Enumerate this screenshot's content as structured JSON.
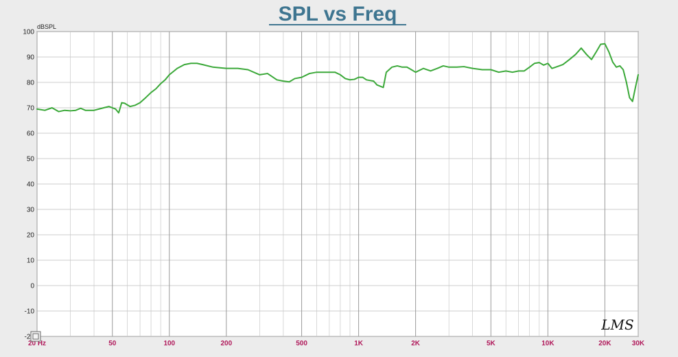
{
  "chart_data": {
    "type": "line",
    "title": "SPL vs Freq",
    "ylabel": "dBSPL",
    "xlabel": "",
    "x_scale": "log",
    "xlim": [
      20,
      30000
    ],
    "ylim": [
      -20,
      100
    ],
    "grid": true,
    "ytick_labels": [
      "100",
      "90",
      "80",
      "70",
      "60",
      "50",
      "40",
      "30",
      "20",
      "10",
      "0",
      "-10",
      "-20"
    ],
    "xtick_labels": [
      {
        "f": 20,
        "label": "20 Hz"
      },
      {
        "f": 50,
        "label": "50"
      },
      {
        "f": 100,
        "label": "100"
      },
      {
        "f": 200,
        "label": "200"
      },
      {
        "f": 500,
        "label": "500"
      },
      {
        "f": 1000,
        "label": "1K"
      },
      {
        "f": 2000,
        "label": "2K"
      },
      {
        "f": 5000,
        "label": "5K"
      },
      {
        "f": 10000,
        "label": "10K"
      },
      {
        "f": 20000,
        "label": "20K"
      },
      {
        "f": 30000,
        "label": "30K"
      }
    ],
    "series": [
      {
        "color": "#3aa838",
        "points": [
          [
            20,
            69.5
          ],
          [
            22,
            69
          ],
          [
            24,
            70
          ],
          [
            26,
            68.5
          ],
          [
            28,
            69
          ],
          [
            30,
            68.8
          ],
          [
            32,
            69
          ],
          [
            34,
            69.8
          ],
          [
            36,
            69
          ],
          [
            40,
            69
          ],
          [
            45,
            70
          ],
          [
            48,
            70.5
          ],
          [
            52,
            69.5
          ],
          [
            54,
            68
          ],
          [
            56,
            72
          ],
          [
            58,
            71.8
          ],
          [
            62,
            70.5
          ],
          [
            66,
            71
          ],
          [
            70,
            72
          ],
          [
            75,
            74
          ],
          [
            80,
            76
          ],
          [
            85,
            77.5
          ],
          [
            90,
            79.5
          ],
          [
            95,
            81
          ],
          [
            100,
            83
          ],
          [
            110,
            85.5
          ],
          [
            120,
            87
          ],
          [
            130,
            87.5
          ],
          [
            140,
            87.5
          ],
          [
            150,
            87
          ],
          [
            170,
            86
          ],
          [
            200,
            85.5
          ],
          [
            230,
            85.5
          ],
          [
            260,
            85
          ],
          [
            300,
            83
          ],
          [
            330,
            83.5
          ],
          [
            370,
            81
          ],
          [
            400,
            80.5
          ],
          [
            430,
            80.2
          ],
          [
            460,
            81.5
          ],
          [
            500,
            82
          ],
          [
            550,
            83.5
          ],
          [
            600,
            84
          ],
          [
            700,
            84
          ],
          [
            750,
            84
          ],
          [
            800,
            83
          ],
          [
            850,
            81.5
          ],
          [
            900,
            81
          ],
          [
            950,
            81.2
          ],
          [
            1000,
            82
          ],
          [
            1050,
            82
          ],
          [
            1100,
            81
          ],
          [
            1200,
            80.5
          ],
          [
            1250,
            79
          ],
          [
            1300,
            78.5
          ],
          [
            1350,
            78
          ],
          [
            1400,
            84
          ],
          [
            1500,
            86
          ],
          [
            1600,
            86.5
          ],
          [
            1700,
            86
          ],
          [
            1800,
            86
          ],
          [
            1900,
            85
          ],
          [
            2000,
            84
          ],
          [
            2200,
            85.5
          ],
          [
            2400,
            84.5
          ],
          [
            2600,
            85.5
          ],
          [
            2800,
            86.5
          ],
          [
            3000,
            86
          ],
          [
            3300,
            86
          ],
          [
            3600,
            86.2
          ],
          [
            4000,
            85.5
          ],
          [
            4500,
            85
          ],
          [
            5000,
            85
          ],
          [
            5500,
            84
          ],
          [
            6000,
            84.5
          ],
          [
            6500,
            84
          ],
          [
            7000,
            84.5
          ],
          [
            7500,
            84.5
          ],
          [
            8000,
            86
          ],
          [
            8500,
            87.5
          ],
          [
            9000,
            87.8
          ],
          [
            9500,
            86.8
          ],
          [
            10000,
            87.5
          ],
          [
            10500,
            85.5
          ],
          [
            11000,
            86
          ],
          [
            12000,
            87
          ],
          [
            13000,
            89
          ],
          [
            14000,
            91
          ],
          [
            15000,
            93.5
          ],
          [
            16000,
            91
          ],
          [
            17000,
            89
          ],
          [
            18000,
            92
          ],
          [
            19000,
            95
          ],
          [
            20000,
            95.2
          ],
          [
            21000,
            92
          ],
          [
            22000,
            88
          ],
          [
            23000,
            86
          ],
          [
            24000,
            86.5
          ],
          [
            25000,
            85
          ],
          [
            26000,
            80
          ],
          [
            27000,
            74
          ],
          [
            28000,
            72.5
          ],
          [
            29000,
            78
          ],
          [
            30000,
            83
          ]
        ]
      }
    ]
  },
  "watermark": "LMS"
}
